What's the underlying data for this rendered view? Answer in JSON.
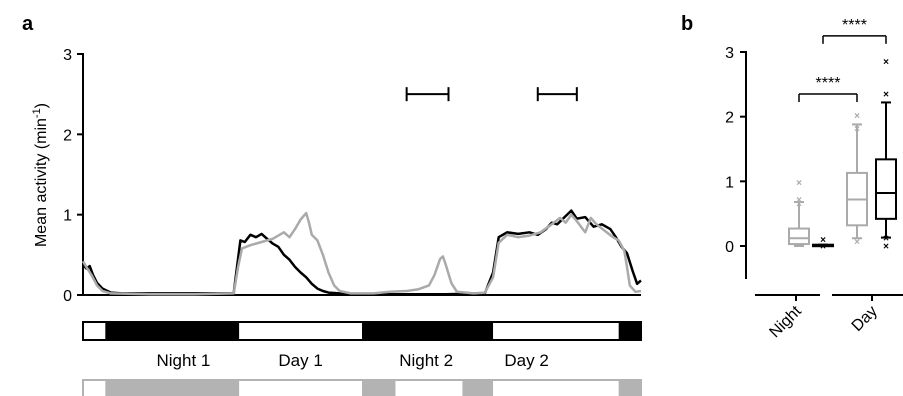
{
  "panels": {
    "a": {
      "label": "a",
      "chart_data": {
        "type": "line",
        "ylabel_main": "Mean activity (min",
        "ylabel_sup": "-1",
        "ylabel_close": ")",
        "ylim": [
          0,
          3
        ],
        "yticks": [
          "0",
          "1",
          "2",
          "3"
        ],
        "grid": false,
        "x_unit": "fraction of recording",
        "series": [
          {
            "color": "#000000",
            "points": [
              [
                0,
                0.38
              ],
              [
                0.006,
                0.33
              ],
              [
                0.012,
                0.36
              ],
              [
                0.018,
                0.25
              ],
              [
                0.025,
                0.15
              ],
              [
                0.035,
                0.08
              ],
              [
                0.05,
                0.03
              ],
              [
                0.07,
                0.02
              ],
              [
                0.12,
                0.02
              ],
              [
                0.2,
                0.02
              ],
              [
                0.27,
                0.02
              ],
              [
                0.275,
                0.3
              ],
              [
                0.282,
                0.68
              ],
              [
                0.29,
                0.66
              ],
              [
                0.3,
                0.75
              ],
              [
                0.31,
                0.72
              ],
              [
                0.32,
                0.76
              ],
              [
                0.33,
                0.7
              ],
              [
                0.34,
                0.64
              ],
              [
                0.35,
                0.6
              ],
              [
                0.36,
                0.5
              ],
              [
                0.37,
                0.44
              ],
              [
                0.38,
                0.35
              ],
              [
                0.39,
                0.28
              ],
              [
                0.4,
                0.22
              ],
              [
                0.41,
                0.14
              ],
              [
                0.42,
                0.08
              ],
              [
                0.43,
                0.05
              ],
              [
                0.44,
                0.03
              ],
              [
                0.46,
                0.02
              ],
              [
                0.5,
                0.01
              ],
              [
                0.55,
                0.01
              ],
              [
                0.6,
                0.01
              ],
              [
                0.65,
                0.01
              ],
              [
                0.72,
                0.02
              ],
              [
                0.735,
                0.28
              ],
              [
                0.745,
                0.72
              ],
              [
                0.76,
                0.78
              ],
              [
                0.78,
                0.76
              ],
              [
                0.8,
                0.78
              ],
              [
                0.815,
                0.75
              ],
              [
                0.83,
                0.82
              ],
              [
                0.84,
                0.9
              ],
              [
                0.85,
                0.88
              ],
              [
                0.86,
                0.95
              ],
              [
                0.875,
                1.05
              ],
              [
                0.885,
                0.95
              ],
              [
                0.9,
                0.97
              ],
              [
                0.915,
                0.85
              ],
              [
                0.93,
                0.88
              ],
              [
                0.945,
                0.82
              ],
              [
                0.955,
                0.72
              ],
              [
                0.965,
                0.6
              ],
              [
                0.975,
                0.52
              ],
              [
                0.985,
                0.3
              ],
              [
                0.993,
                0.14
              ],
              [
                1,
                0.18
              ]
            ]
          },
          {
            "color": "#aaaaaa",
            "points": [
              [
                0,
                0.42
              ],
              [
                0.006,
                0.35
              ],
              [
                0.015,
                0.25
              ],
              [
                0.025,
                0.12
              ],
              [
                0.035,
                0.05
              ],
              [
                0.05,
                0.02
              ],
              [
                0.12,
                0.01
              ],
              [
                0.2,
                0.01
              ],
              [
                0.27,
                0.02
              ],
              [
                0.278,
                0.35
              ],
              [
                0.285,
                0.58
              ],
              [
                0.3,
                0.62
              ],
              [
                0.32,
                0.66
              ],
              [
                0.34,
                0.7
              ],
              [
                0.36,
                0.78
              ],
              [
                0.37,
                0.72
              ],
              [
                0.38,
                0.82
              ],
              [
                0.39,
                0.94
              ],
              [
                0.4,
                1.02
              ],
              [
                0.405,
                0.9
              ],
              [
                0.41,
                0.75
              ],
              [
                0.42,
                0.68
              ],
              [
                0.43,
                0.5
              ],
              [
                0.44,
                0.28
              ],
              [
                0.45,
                0.12
              ],
              [
                0.46,
                0.05
              ],
              [
                0.48,
                0.02
              ],
              [
                0.52,
                0.02
              ],
              [
                0.55,
                0.04
              ],
              [
                0.58,
                0.05
              ],
              [
                0.6,
                0.07
              ],
              [
                0.62,
                0.12
              ],
              [
                0.63,
                0.25
              ],
              [
                0.64,
                0.45
              ],
              [
                0.645,
                0.48
              ],
              [
                0.65,
                0.38
              ],
              [
                0.66,
                0.15
              ],
              [
                0.67,
                0.04
              ],
              [
                0.7,
                0.02
              ],
              [
                0.72,
                0.03
              ],
              [
                0.735,
                0.22
              ],
              [
                0.745,
                0.65
              ],
              [
                0.76,
                0.75
              ],
              [
                0.78,
                0.72
              ],
              [
                0.8,
                0.74
              ],
              [
                0.82,
                0.78
              ],
              [
                0.84,
                0.88
              ],
              [
                0.855,
                0.96
              ],
              [
                0.865,
                0.9
              ],
              [
                0.875,
                1.0
              ],
              [
                0.885,
                0.92
              ],
              [
                0.9,
                0.78
              ],
              [
                0.91,
                0.96
              ],
              [
                0.92,
                0.88
              ],
              [
                0.935,
                0.8
              ],
              [
                0.95,
                0.72
              ],
              [
                0.96,
                0.68
              ],
              [
                0.97,
                0.55
              ],
              [
                0.975,
                0.35
              ],
              [
                0.98,
                0.12
              ],
              [
                0.99,
                0.04
              ],
              [
                1,
                0.05
              ]
            ]
          }
        ],
        "error_bars": [
          {
            "x_from": 0.58,
            "x_to": 0.655,
            "y": 2.5
          },
          {
            "x_from": 0.815,
            "x_to": 0.885,
            "y": 2.5
          }
        ]
      },
      "light_bar": {
        "segments": [
          {
            "from": 0,
            "to": 0.04,
            "state": "light"
          },
          {
            "from": 0.04,
            "to": 0.28,
            "state": "dark"
          },
          {
            "from": 0.28,
            "to": 0.5,
            "state": "light"
          },
          {
            "from": 0.5,
            "to": 0.735,
            "state": "dark"
          },
          {
            "from": 0.735,
            "to": 0.96,
            "state": "light"
          },
          {
            "from": 0.96,
            "to": 1.0,
            "state": "dark"
          }
        ],
        "labels": [
          {
            "text": "Night 1",
            "center": 0.18
          },
          {
            "text": "Day 1",
            "center": 0.39
          },
          {
            "text": "Night 2",
            "center": 0.615
          },
          {
            "text": "Day 2",
            "center": 0.795
          }
        ]
      },
      "grey_bar": {
        "segments": [
          {
            "from": 0,
            "to": 0.04,
            "state": "light"
          },
          {
            "from": 0.04,
            "to": 0.28,
            "state": "dark"
          },
          {
            "from": 0.28,
            "to": 0.5,
            "state": "light"
          },
          {
            "from": 0.5,
            "to": 0.56,
            "state": "dark"
          },
          {
            "from": 0.56,
            "to": 0.68,
            "state": "light"
          },
          {
            "from": 0.68,
            "to": 0.735,
            "state": "dark"
          },
          {
            "from": 0.735,
            "to": 0.96,
            "state": "light"
          },
          {
            "from": 0.96,
            "to": 1.0,
            "state": "dark"
          }
        ]
      }
    },
    "b": {
      "label": "b",
      "chart_data": {
        "type": "box",
        "categories": [
          "Night",
          "Day"
        ],
        "ylim": [
          0,
          3
        ],
        "yticks": [
          "0",
          "1",
          "2",
          "3"
        ],
        "grid": false,
        "boxes": [
          {
            "group": "Night",
            "color": "#aaaaaa",
            "whisker_low": 0.0,
            "q1": 0.03,
            "median": 0.12,
            "q3": 0.27,
            "whisker_high": 0.68,
            "outliers": [
              0.98,
              0.72,
              0.66
            ]
          },
          {
            "group": "Night",
            "color": "#000000",
            "whisker_low": 0.0,
            "q1": 0.0,
            "median": 0.01,
            "q3": 0.02,
            "whisker_high": 0.02,
            "outliers": [
              0.1,
              0.0
            ]
          },
          {
            "group": "Day",
            "color": "#aaaaaa",
            "whisker_low": 0.12,
            "q1": 0.32,
            "median": 0.72,
            "q3": 1.13,
            "whisker_high": 1.88,
            "outliers": [
              2.02,
              1.82,
              0.07
            ]
          },
          {
            "group": "Day",
            "color": "#000000",
            "whisker_low": 0.13,
            "q1": 0.42,
            "median": 0.82,
            "q3": 1.34,
            "whisker_high": 2.22,
            "outliers": [
              2.85,
              2.35,
              0.12,
              0.0
            ]
          }
        ],
        "significance": [
          {
            "text": "****",
            "from_box": 0,
            "to_box": 2,
            "y": 2.35
          },
          {
            "text": "****",
            "from_box": 1,
            "to_box": 3,
            "y": 3.25
          }
        ]
      }
    }
  }
}
